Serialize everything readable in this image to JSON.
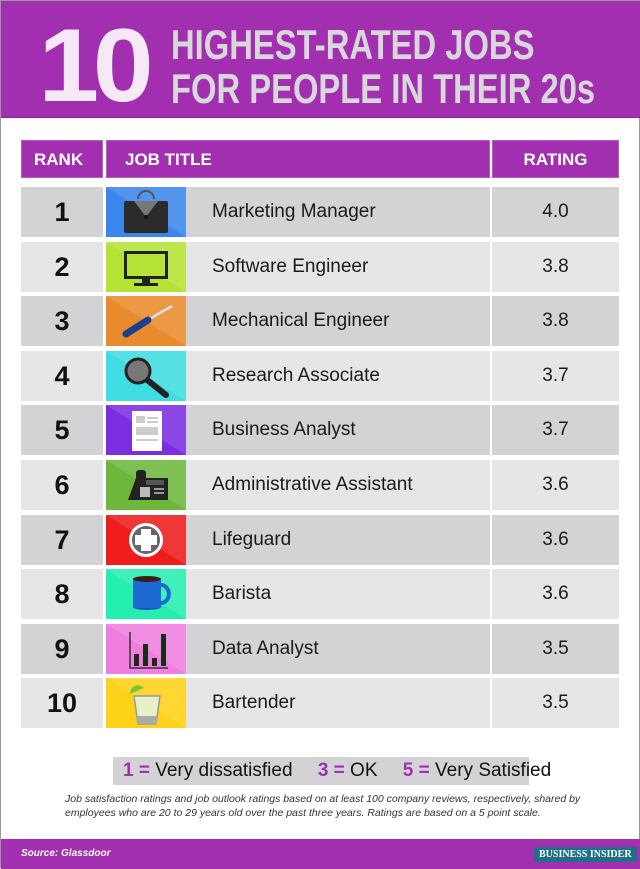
{
  "header": {
    "number": "10",
    "line1": "HIGHEST-RATED JOBS",
    "line2": "FOR PEOPLE IN THEIR 20s"
  },
  "chart_data": {
    "type": "table",
    "columns": [
      "RANK",
      "JOB TITLE",
      "RATING"
    ],
    "rows": [
      {
        "rank": "1",
        "title": "Marketing Manager",
        "rating": "4.0",
        "icon": "briefcase-icon",
        "color": "#3b86ec"
      },
      {
        "rank": "2",
        "title": "Software Engineer",
        "rating": "3.8",
        "icon": "monitor-icon",
        "color": "#b5e335"
      },
      {
        "rank": "3",
        "title": "Mechanical Engineer",
        "rating": "3.8",
        "icon": "screwdriver-icon",
        "color": "#e98b2c"
      },
      {
        "rank": "4",
        "title": "Research Associate",
        "rating": "3.7",
        "icon": "magnifier-icon",
        "color": "#3fdde2"
      },
      {
        "rank": "5",
        "title": "Business Analyst",
        "rating": "3.7",
        "icon": "document-icon",
        "color": "#7b2ee0"
      },
      {
        "rank": "6",
        "title": "Administrative Assistant",
        "rating": "3.6",
        "icon": "telephone-icon",
        "color": "#6db83a"
      },
      {
        "rank": "7",
        "title": "Lifeguard",
        "rating": "3.6",
        "icon": "first-aid-icon",
        "color": "#ee1c1c"
      },
      {
        "rank": "8",
        "title": "Barista",
        "rating": "3.6",
        "icon": "mug-icon",
        "color": "#25efb0"
      },
      {
        "rank": "9",
        "title": "Data Analyst",
        "rating": "3.5",
        "icon": "bar-chart-icon",
        "color": "#f07ee0"
      },
      {
        "rank": "10",
        "title": "Bartender",
        "rating": "3.5",
        "icon": "cocktail-glass-icon",
        "color": "#ffd21a"
      }
    ]
  },
  "legend": [
    {
      "num": "1 =",
      "label": "Very dissatisfied"
    },
    {
      "num": "3 =",
      "label": "OK"
    },
    {
      "num": "5 =",
      "label": "Very Satisfied"
    }
  ],
  "note": "Job satisfaction ratings and job outlook ratings based on at least 100 company reviews, respectively, shared by employees who are 20 to 29 years old over the past three years. Ratings are based on a 5 point scale.",
  "footer": {
    "source": "Source: Glassdoor",
    "brand": "BUSINESS INSIDER"
  },
  "colors": {
    "accent": "#a22fb0",
    "row_dark": "#d3d3d5",
    "row_light": "#e6e6e8"
  }
}
